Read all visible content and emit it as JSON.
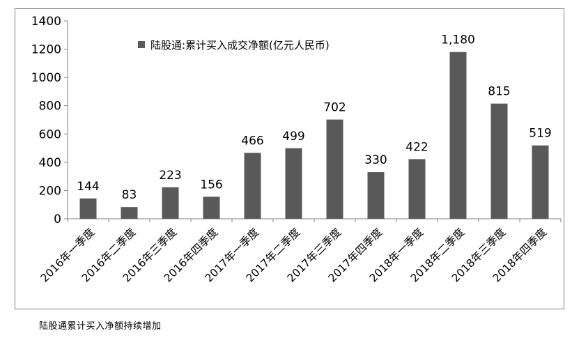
{
  "chart_data": {
    "type": "bar",
    "categories": [
      "2016年一季度",
      "2016年二季度",
      "2016年三季度",
      "2016年四季度",
      "2017年一季度",
      "2017年二季度",
      "2017年三季度",
      "2017年四季度",
      "2018年一季度",
      "2018年二季度",
      "2018年三季度",
      "2018年四季度"
    ],
    "series": [
      {
        "name": "陆股通:累计买入成交净额(亿元人民币)",
        "values": [
          144,
          83,
          223,
          156,
          466,
          499,
          702,
          330,
          422,
          1180,
          815,
          519
        ],
        "data_labels": [
          "144",
          "83",
          "223",
          "156",
          "466",
          "499",
          "702",
          "330",
          "422",
          "1,180",
          "815",
          "519"
        ]
      }
    ],
    "yticks": [
      "0",
      "200",
      "400",
      "600",
      "800",
      "1000",
      "1200",
      "1400"
    ],
    "ylim": [
      0,
      1400
    ],
    "grid": false,
    "legend_position": "top-left",
    "colors": {
      "bar": "#595959",
      "axis": "#808080",
      "text": "#000000"
    }
  },
  "caption": "陆股通累计买入净额持续增加"
}
